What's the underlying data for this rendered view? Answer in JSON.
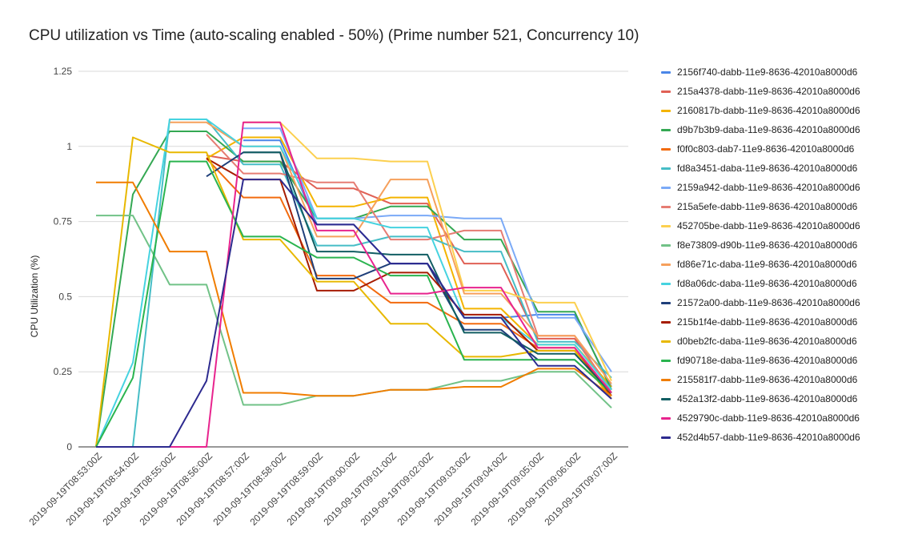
{
  "chart_data": {
    "type": "line",
    "title": "CPU utilization vs Time (auto-scaling enabled - 50%)  (Prime number 521, Concurrency 10)",
    "xlabel": "",
    "ylabel": "CPU Utilization (%)",
    "ylim": [
      0,
      1.25
    ],
    "yticks": [
      "0",
      "0.25",
      "0.5",
      "0.75",
      "1",
      "1.25"
    ],
    "grid": true,
    "legend_position": "right",
    "categories": [
      "2019-09-19T08:53:00Z",
      "2019-09-19T08:54:00Z",
      "2019-09-19T08:55:00Z",
      "2019-09-19T08:56:00Z",
      "2019-09-19T08:57:00Z",
      "2019-09-19T08:58:00Z",
      "2019-09-19T08:59:00Z",
      "2019-09-19T09:00:00Z",
      "2019-09-19T09:01:00Z",
      "2019-09-19T09:02:00Z",
      "2019-09-19T09:03:00Z",
      "2019-09-19T09:04:00Z",
      "2019-09-19T09:05:00Z",
      "2019-09-19T09:06:00Z",
      "2019-09-19T09:07:00Z"
    ],
    "series": [
      {
        "name": "2156f740-dabb-11e9-8636-42010a8000d6",
        "color": "#4a86e8",
        "values": [
          null,
          null,
          null,
          null,
          1.02,
          1.02,
          0.74,
          0.74,
          0.61,
          0.61,
          0.43,
          0.43,
          0.44,
          0.44,
          0.2
        ]
      },
      {
        "name": "215a4378-dabb-11e9-8636-42010a8000d6",
        "color": "#e06055",
        "values": [
          null,
          null,
          null,
          0.97,
          0.95,
          0.95,
          0.86,
          0.86,
          0.81,
          0.81,
          0.61,
          0.61,
          0.36,
          0.36,
          0.19
        ]
      },
      {
        "name": "2160817b-dabb-11e9-8636-42010a8000d6",
        "color": "#f4b400",
        "values": [
          null,
          null,
          null,
          0.96,
          1.03,
          1.03,
          0.8,
          0.8,
          0.83,
          0.83,
          0.46,
          0.46,
          0.34,
          0.34,
          0.2
        ]
      },
      {
        "name": "d9b7b3b9-daba-11e9-8636-42010a8000d6",
        "color": "#34a853",
        "values": [
          0.0,
          0.84,
          1.05,
          1.05,
          0.95,
          0.95,
          0.76,
          0.76,
          0.8,
          0.8,
          0.69,
          0.69,
          0.45,
          0.45,
          0.19
        ]
      },
      {
        "name": "f0f0c803-dab7-11e9-8636-42010a8000d6",
        "color": "#f26b0f",
        "values": [
          null,
          null,
          null,
          0.96,
          0.83,
          0.83,
          0.57,
          0.57,
          0.48,
          0.48,
          0.41,
          0.41,
          0.33,
          0.33,
          0.17
        ]
      },
      {
        "name": "fd8a3451-daba-11e9-8636-42010a8000d6",
        "color": "#46bdc6",
        "values": [
          0.0,
          0.0,
          1.09,
          1.09,
          0.94,
          0.94,
          0.67,
          0.67,
          0.7,
          0.7,
          0.65,
          0.65,
          0.35,
          0.35,
          0.23
        ]
      },
      {
        "name": "2159a942-dabb-11e9-8636-42010a8000d6",
        "color": "#7baaf7",
        "values": [
          null,
          null,
          null,
          null,
          1.06,
          1.06,
          0.76,
          0.76,
          0.77,
          0.77,
          0.76,
          0.76,
          0.43,
          0.43,
          0.25
        ]
      },
      {
        "name": "215a5efe-dabb-11e9-8636-42010a8000d6",
        "color": "#e67c73",
        "values": [
          null,
          null,
          null,
          1.04,
          0.91,
          0.91,
          0.88,
          0.88,
          0.69,
          0.69,
          0.72,
          0.72,
          0.37,
          0.37,
          0.18
        ]
      },
      {
        "name": "452705be-dabb-11e9-8636-42010a8000d6",
        "color": "#fcd04f",
        "values": [
          null,
          null,
          null,
          null,
          1.08,
          1.08,
          0.96,
          0.96,
          0.95,
          0.95,
          0.52,
          0.52,
          0.48,
          0.48,
          0.22
        ]
      },
      {
        "name": "f8e73809-d90b-11e9-8636-42010a8000d6",
        "color": "#71c287",
        "values": [
          0.77,
          0.77,
          0.54,
          0.54,
          0.14,
          0.14,
          0.17,
          0.17,
          0.19,
          0.19,
          0.22,
          0.22,
          0.25,
          0.25,
          0.13
        ]
      },
      {
        "name": "fd86e71c-daba-11e9-8636-42010a8000d6",
        "color": "#f6a05c",
        "values": [
          null,
          null,
          1.08,
          1.08,
          1.0,
          1.0,
          0.7,
          0.7,
          0.89,
          0.89,
          0.51,
          0.51,
          0.37,
          0.37,
          0.21
        ]
      },
      {
        "name": "fd8a06dc-daba-11e9-8636-42010a8000d6",
        "color": "#46d3e0",
        "values": [
          0.0,
          0.28,
          1.09,
          1.09,
          1.0,
          1.0,
          0.76,
          0.76,
          0.73,
          0.73,
          0.43,
          0.43,
          0.34,
          0.34,
          0.19
        ]
      },
      {
        "name": "21572a00-dabb-11e9-8636-42010a8000d6",
        "color": "#1f3f7a",
        "values": [
          null,
          null,
          null,
          0.9,
          0.98,
          0.98,
          0.56,
          0.56,
          0.61,
          0.61,
          0.39,
          0.39,
          0.29,
          0.29,
          0.18
        ]
      },
      {
        "name": "215b1f4e-dabb-11e9-8636-42010a8000d6",
        "color": "#a61c00",
        "values": [
          null,
          null,
          null,
          0.96,
          0.89,
          0.89,
          0.52,
          0.52,
          0.58,
          0.58,
          0.44,
          0.44,
          0.32,
          0.32,
          0.17
        ]
      },
      {
        "name": "d0beb2fc-daba-11e9-8636-42010a8000d6",
        "color": "#e8b800",
        "values": [
          0.0,
          1.03,
          0.98,
          0.98,
          0.69,
          0.69,
          0.55,
          0.55,
          0.41,
          0.41,
          0.3,
          0.3,
          0.32,
          0.32,
          0.16
        ]
      },
      {
        "name": "fd90718e-daba-11e9-8636-42010a8000d6",
        "color": "#2ab44f",
        "values": [
          0.0,
          0.23,
          0.95,
          0.95,
          0.7,
          0.7,
          0.63,
          0.63,
          0.57,
          0.57,
          0.29,
          0.29,
          0.29,
          0.29,
          0.18
        ]
      },
      {
        "name": "215581f7-dabb-11e9-8636-42010a8000d6",
        "color": "#f07d00",
        "values": [
          0.88,
          0.88,
          0.65,
          0.65,
          0.18,
          0.18,
          0.17,
          0.17,
          0.19,
          0.19,
          0.2,
          0.2,
          0.26,
          0.26,
          0.17
        ]
      },
      {
        "name": "452a13f2-dabb-11e9-8636-42010a8000d6",
        "color": "#125e63",
        "values": [
          null,
          null,
          null,
          null,
          0.98,
          0.98,
          0.65,
          0.65,
          0.64,
          0.64,
          0.38,
          0.38,
          0.31,
          0.31,
          0.18
        ]
      },
      {
        "name": "4529790c-dabb-11e9-8636-42010a8000d6",
        "color": "#e8248e",
        "values": [
          null,
          null,
          0.0,
          0.0,
          1.08,
          1.08,
          0.72,
          0.72,
          0.51,
          0.51,
          0.53,
          0.53,
          0.33,
          0.33,
          0.18
        ]
      },
      {
        "name": "452d4b57-dabb-11e9-8636-42010a8000d6",
        "color": "#2d2a8f",
        "values": [
          0.0,
          0.0,
          0.0,
          0.22,
          0.89,
          0.89,
          0.74,
          0.74,
          0.61,
          0.61,
          0.43,
          0.43,
          0.27,
          0.27,
          0.16
        ]
      }
    ]
  }
}
